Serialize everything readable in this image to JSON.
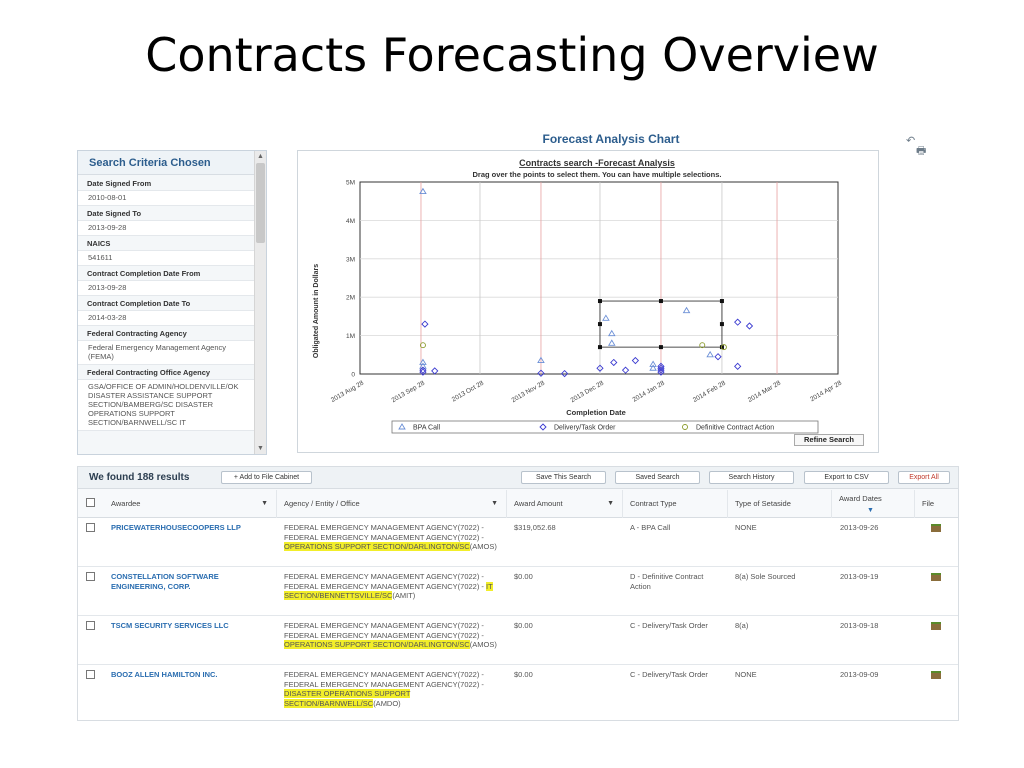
{
  "slide_title": "Contracts Forecasting Overview",
  "criteria": {
    "title": "Search Criteria Chosen",
    "items": [
      {
        "label": "Date Signed From",
        "value": "2010-08-01"
      },
      {
        "label": "Date Signed To",
        "value": "2013-09-28"
      },
      {
        "label": "NAICS",
        "value": "541611"
      },
      {
        "label": "Contract Completion Date From",
        "value": "2013-09-28"
      },
      {
        "label": "Contract Completion Date To",
        "value": "2014-03-28"
      },
      {
        "label": "Federal Contracting Agency",
        "value": "Federal Emergency Management Agency (FEMA)"
      },
      {
        "label": "Federal Contracting Office Agency",
        "value": "GSA/OFFICE OF ADMIN/HOLDENVILLE/OK DISASTER ASSISTANCE SUPPORT SECTION/BAMBERG/SC DISASTER OPERATIONS SUPPORT SECTION/BARNWELL/SC IT"
      }
    ]
  },
  "chart_header": "Forecast Analysis Chart",
  "chart_data": {
    "type": "scatter",
    "title": "Contracts search -Forecast Analysis",
    "subtitle": "Drag over the points to select them. You can have multiple selections.",
    "xlabel": "Completion Date",
    "ylabel": "Obligated Amount in Dollars",
    "ylim": [
      0,
      5000000
    ],
    "y_ticks": [
      "0",
      "1M",
      "2M",
      "3M",
      "4M",
      "5M"
    ],
    "x_ticks": [
      "2013 Aug 28",
      "2013 Sep 28",
      "2013 Oct 28",
      "2013 Nov 28",
      "2013 Dec 28",
      "2014 Jan 28",
      "2014 Feb 28",
      "2014 Mar 28",
      "2014 Apr 28"
    ],
    "grid": true,
    "legend_position": "bottom",
    "series": [
      {
        "name": "BPA Call",
        "marker": "triangle",
        "color": "#6b8fd6",
        "points": [
          [
            "2013-09-29",
            4750000
          ],
          [
            "2013-09-29",
            300000
          ],
          [
            "2013-09-29",
            200000
          ],
          [
            "2013-11-28",
            350000
          ],
          [
            "2013-12-31",
            1450000
          ],
          [
            "2014-01-03",
            1050000
          ],
          [
            "2014-01-03",
            800000
          ],
          [
            "2014-01-24",
            250000
          ],
          [
            "2014-01-24",
            150000
          ],
          [
            "2014-02-10",
            1650000
          ],
          [
            "2014-02-22",
            500000
          ]
        ]
      },
      {
        "name": "Delivery/Task Order",
        "marker": "diamond",
        "color": "#3a3ad0",
        "points": [
          [
            "2013-09-30",
            1300000
          ],
          [
            "2013-09-29",
            100000
          ],
          [
            "2013-09-29",
            50000
          ],
          [
            "2013-10-05",
            80000
          ],
          [
            "2013-11-28",
            20000
          ],
          [
            "2013-12-10",
            10000
          ],
          [
            "2013-12-28",
            150000
          ],
          [
            "2014-01-04",
            300000
          ],
          [
            "2014-01-10",
            100000
          ],
          [
            "2014-01-15",
            350000
          ],
          [
            "2014-01-28",
            200000
          ],
          [
            "2014-01-28",
            150000
          ],
          [
            "2014-01-28",
            100000
          ],
          [
            "2014-01-28",
            50000
          ],
          [
            "2014-03-08",
            1350000
          ],
          [
            "2014-03-14",
            1250000
          ],
          [
            "2014-03-08",
            200000
          ],
          [
            "2014-02-26",
            450000
          ]
        ]
      },
      {
        "name": "Definitive Contract Action",
        "marker": "circle",
        "color": "#8a9a2a",
        "points": [
          [
            "2013-09-29",
            750000
          ],
          [
            "2014-02-18",
            750000
          ],
          [
            "2014-02-29",
            700000
          ]
        ]
      }
    ],
    "selection_box": {
      "x_from": "2013-12-28",
      "x_to": "2014-02-28",
      "y_from": 700000,
      "y_to": 1900000
    }
  },
  "refine_label": "Refine Search",
  "results": {
    "count_text": "We found 188 results",
    "add_cabinet": "+ Add to File Cabinet",
    "buttons": [
      "Save This Search",
      "Saved Search",
      "Search History",
      "Export to CSV",
      "Export All"
    ],
    "columns": [
      "Awardee",
      "Agency / Entity / Office",
      "Award Amount",
      "Contract Type",
      "Type of Setaside",
      "Award Dates",
      "File"
    ],
    "rows": [
      {
        "awardee": "PRICEWATERHOUSECOOPERS LLP",
        "agency_pre": "FEDERAL EMERGENCY MANAGEMENT AGENCY(7022) - FEDERAL EMERGENCY MANAGEMENT AGENCY(7022) - ",
        "agency_hl": "OPERATIONS SUPPORT SECTION/DARLINGTON/SC",
        "agency_post": "(AMOS)",
        "amount": "$319,052.68",
        "type": "A - BPA Call",
        "setaside": "NONE",
        "date": "2013-09-26"
      },
      {
        "awardee": "CONSTELLATION SOFTWARE ENGINEERING, CORP.",
        "agency_pre": "FEDERAL EMERGENCY MANAGEMENT AGENCY(7022) - FEDERAL EMERGENCY MANAGEMENT AGENCY(7022) - ",
        "agency_hl": "IT SECTION/BENNETTSVILLE/SC",
        "agency_post": "(AMIT)",
        "amount": "$0.00",
        "type": "D - Definitive Contract Action",
        "setaside": "8(a) Sole Sourced",
        "date": "2013-09-19"
      },
      {
        "awardee": "TSCM SECURITY SERVICES LLC",
        "agency_pre": "FEDERAL EMERGENCY MANAGEMENT AGENCY(7022) - FEDERAL EMERGENCY MANAGEMENT AGENCY(7022) - ",
        "agency_hl": "OPERATIONS SUPPORT SECTION/DARLINGTON/SC",
        "agency_post": "(AMOS)",
        "amount": "$0.00",
        "type": "C - Delivery/Task Order",
        "setaside": "8(a)",
        "date": "2013-09-18"
      },
      {
        "awardee": "BOOZ ALLEN HAMILTON INC.",
        "agency_pre": "FEDERAL EMERGENCY MANAGEMENT AGENCY(7022) - FEDERAL EMERGENCY MANAGEMENT AGENCY(7022) - ",
        "agency_hl": "DISASTER OPERATIONS SUPPORT SECTION/BARNWELL/SC",
        "agency_post": "(AMDO)",
        "amount": "$0.00",
        "type": "C - Delivery/Task Order",
        "setaside": "NONE",
        "date": "2013-09-09"
      }
    ]
  },
  "colors": {
    "accent": "#2c5d8d",
    "link": "#2a6db0",
    "highlight": "#f2ee2a",
    "export_all": "#c0392b"
  }
}
